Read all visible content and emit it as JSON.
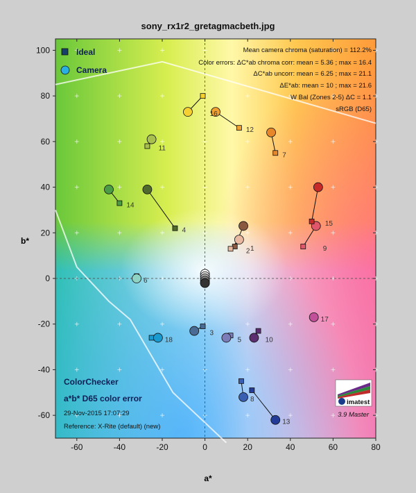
{
  "chart_data": {
    "type": "scatter",
    "title": "sony_rx1r2_gretagmacbeth.jpg",
    "xlabel": "a*",
    "ylabel": "b*",
    "xlim": [
      -70,
      80
    ],
    "ylim": [
      -70,
      105
    ],
    "xticks": [
      -60,
      -40,
      -20,
      0,
      20,
      40,
      60,
      80
    ],
    "yticks": [
      -60,
      -40,
      -20,
      0,
      20,
      40,
      60,
      80,
      100
    ],
    "legend": [
      {
        "name": "Ideal",
        "marker": "square"
      },
      {
        "name": "Camera",
        "marker": "circle"
      }
    ],
    "legend_position": "top-left",
    "gamut_label": "sRGB (D65)",
    "stats": [
      "Mean camera chroma (saturation) = 112.2%",
      "Color errors: ΔC*ab chroma corr:  mean = 5.36 ;  max = 16.4",
      "ΔC*ab uncorr:  mean = 6.25 ;  max = 21.1",
      "ΔE*ab:  mean = 10 ;  max = 21.6",
      "W Bal (Zones 2-5) ΔC = 1.1"
    ],
    "annotations": {
      "chart_name": "ColorChecker",
      "chart_subtitle": "a*b* D65 color error",
      "date": "29-Nov-2015 17:07:29",
      "reference": "Reference: X-Rite (default) (new)",
      "version": "3.9  Master",
      "logo": "imatest"
    },
    "patches": [
      {
        "id": "1",
        "ideal": [
          14,
          14
        ],
        "camera": [
          18,
          23
        ],
        "color": "#8a5a40"
      },
      {
        "id": "2",
        "ideal": [
          12,
          13
        ],
        "camera": [
          16,
          17
        ],
        "color": "#e8b8a0"
      },
      {
        "id": "3",
        "ideal": [
          -1,
          -21
        ],
        "camera": [
          -5,
          -23
        ],
        "color": "#4a6c94"
      },
      {
        "id": "4",
        "ideal": [
          -14,
          22
        ],
        "camera": [
          -27,
          39
        ],
        "color": "#4f6a2c"
      },
      {
        "id": "5",
        "ideal": [
          12,
          -25
        ],
        "camera": [
          10,
          -26
        ],
        "color": "#7c7cb8"
      },
      {
        "id": "6",
        "ideal": [
          -32,
          1
        ],
        "camera": [
          -32,
          0
        ],
        "color": "#8fd3c5"
      },
      {
        "id": "7",
        "ideal": [
          33,
          55
        ],
        "camera": [
          31,
          64
        ],
        "color": "#e8862a"
      },
      {
        "id": "8",
        "ideal": [
          17,
          -45
        ],
        "camera": [
          18,
          -52
        ],
        "color": "#3a5eb0"
      },
      {
        "id": "9",
        "ideal": [
          46,
          14
        ],
        "camera": [
          52,
          23
        ],
        "color": "#e0566a"
      },
      {
        "id": "10",
        "ideal": [
          25,
          -23
        ],
        "camera": [
          23,
          -26
        ],
        "color": "#5c2e70"
      },
      {
        "id": "11",
        "ideal": [
          -27,
          58
        ],
        "camera": [
          -25,
          61
        ],
        "color": "#a8c050"
      },
      {
        "id": "12",
        "ideal": [
          16,
          66
        ],
        "camera": [
          5,
          73
        ],
        "color": "#f0a030"
      },
      {
        "id": "13",
        "ideal": [
          22,
          -49
        ],
        "camera": [
          33,
          -62
        ],
        "color": "#233c98"
      },
      {
        "id": "14",
        "ideal": [
          -40,
          33
        ],
        "camera": [
          -45,
          39
        ],
        "color": "#4c9c46"
      },
      {
        "id": "15",
        "ideal": [
          50,
          25
        ],
        "camera": [
          53,
          40
        ],
        "color": "#c82a2a"
      },
      {
        "id": "16",
        "ideal": [
          -1,
          80
        ],
        "camera": [
          -8,
          73
        ],
        "color": "#f5d030"
      },
      {
        "id": "17",
        "ideal": [
          51,
          -17
        ],
        "camera": [
          51,
          -17
        ],
        "color": "#c24f9a"
      },
      {
        "id": "18",
        "ideal": [
          -25,
          -26
        ],
        "camera": [
          -22,
          -26
        ],
        "color": "#1a9bd0"
      }
    ],
    "neutrals": [
      {
        "camera": [
          0,
          2
        ],
        "color": "#ffffff"
      },
      {
        "camera": [
          0,
          1
        ],
        "color": "#d8d8d8"
      },
      {
        "camera": [
          0,
          0
        ],
        "color": "#aaaaaa"
      },
      {
        "camera": [
          0,
          -1
        ],
        "color": "#808080"
      },
      {
        "camera": [
          0,
          -2
        ],
        "color": "#555555"
      },
      {
        "camera": [
          0,
          -2
        ],
        "color": "#333333"
      }
    ],
    "grid": true
  }
}
